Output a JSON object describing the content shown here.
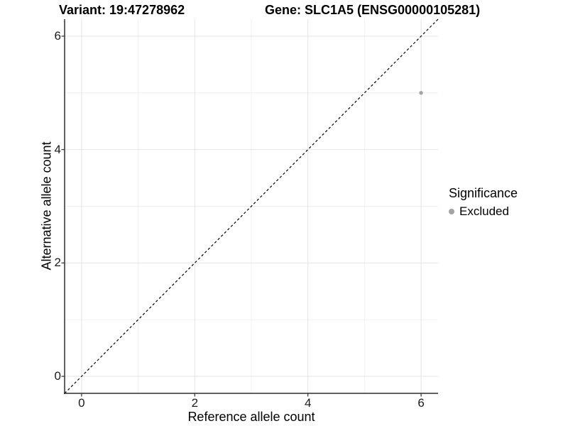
{
  "titles": {
    "left": "Variant: 19:47278962",
    "right": "Gene: SLC1A5 (ENSG00000105281)"
  },
  "chart_data": {
    "type": "scatter",
    "title_left": "Variant: 19:47278962",
    "title_right": "Gene: SLC1A5 (ENSG00000105281)",
    "xlabel": "Reference allele count",
    "ylabel": "Alternative allele count",
    "xlim": [
      -0.3,
      6.3
    ],
    "ylim": [
      -0.3,
      6.3
    ],
    "x_major_ticks": [
      0,
      2,
      4,
      6
    ],
    "y_major_ticks": [
      0,
      2,
      4,
      6
    ],
    "x_minor_ticks": [
      1,
      3,
      5
    ],
    "y_minor_ticks": [
      1,
      3,
      5
    ],
    "grid": true,
    "points": [
      {
        "x": 6,
        "y": 5,
        "series": "Excluded"
      }
    ],
    "reference_line": {
      "slope": 1,
      "intercept": 0,
      "style": "dashed",
      "color": "#000000"
    },
    "legend": {
      "title": "Significance",
      "position": "right",
      "entries": [
        {
          "label": "Excluded",
          "color": "#a3a3a3"
        }
      ]
    }
  },
  "colors": {
    "background": "#ffffff",
    "axis_line": "#2f2f2f",
    "grid_major": "#e4e4e4",
    "grid_minor": "#f0f0f0",
    "point": "#a3a3a3",
    "reference_line": "#000000"
  }
}
